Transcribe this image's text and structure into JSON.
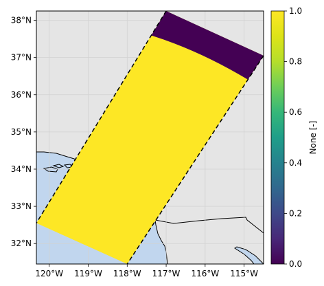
{
  "map": {
    "extent": {
      "lon_min": -120.33,
      "lon_max": -114.5,
      "lat_min": 31.45,
      "lat_max": 38.25
    },
    "lon_ticks": [
      {
        "value": -120,
        "label": "120°W"
      },
      {
        "value": -119,
        "label": "119°W"
      },
      {
        "value": -118,
        "label": "118°W"
      },
      {
        "value": -117,
        "label": "117°W"
      },
      {
        "value": -116,
        "label": "116°W"
      },
      {
        "value": -115,
        "label": "115°W"
      }
    ],
    "lat_ticks": [
      {
        "value": 32,
        "label": "32°N"
      },
      {
        "value": 33,
        "label": "33°N"
      },
      {
        "value": 34,
        "label": "34°N"
      },
      {
        "value": 35,
        "label": "35°N"
      },
      {
        "value": 36,
        "label": "36°N"
      },
      {
        "value": 37,
        "label": "37°N"
      },
      {
        "value": 38,
        "label": "38°N"
      }
    ],
    "gridlines": true,
    "colors": {
      "land": "#e5e5e5",
      "ocean": "#c1d6ee",
      "coast": "#000000"
    },
    "swath": {
      "corners": [
        [
          -117.0,
          38.25
        ],
        [
          -114.5,
          37.05
        ],
        [
          -118.0,
          31.45
        ],
        [
          -120.33,
          32.55
        ]
      ],
      "value_masked": 1,
      "value_unmasked": 0,
      "edge_style": "dashed"
    }
  },
  "colorbar": {
    "label": "None [-]",
    "range": [
      0.0,
      1.0
    ],
    "ticks": [
      "0.0",
      "0.2",
      "0.4",
      "0.6",
      "0.8",
      "1.0"
    ],
    "colormap": "viridis"
  },
  "chart_data": {
    "type": "heatmap",
    "x_range": [
      -120.33,
      -114.5
    ],
    "y_range": [
      31.45,
      38.25
    ],
    "value_range": [
      0,
      1
    ],
    "colorbar_label": "None [-]"
  }
}
